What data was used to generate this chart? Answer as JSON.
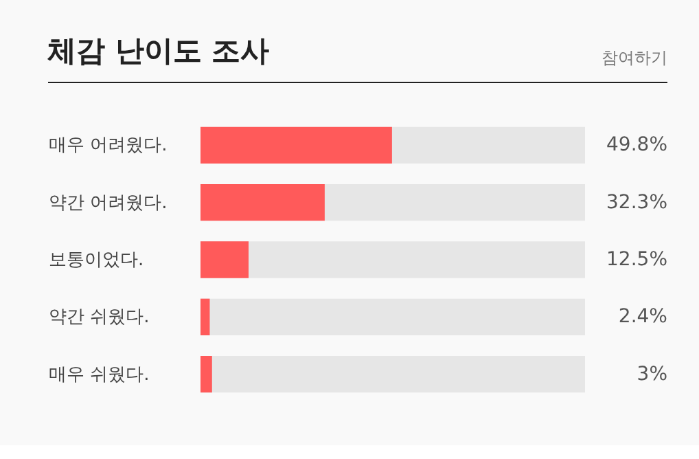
{
  "chart_data": {
    "type": "bar",
    "orientation": "horizontal",
    "title": "체감 난이도 조사",
    "annotations": [
      "참여하기"
    ],
    "categories": [
      "매우 어려웠다.",
      "약간 어려웠다.",
      "보통이었다.",
      "약간 쉬웠다.",
      "매우 쉬웠다."
    ],
    "values": [
      49.8,
      32.3,
      12.5,
      2.4,
      3
    ],
    "value_labels": [
      "49.8%",
      "32.3%",
      "12.5%",
      "2.4%",
      "3%"
    ],
    "color": "#ff5a5a",
    "xlim": [
      0,
      100
    ],
    "bands": [
      {
        "axis": "x",
        "from": 0,
        "to": 100,
        "color": "#e6e6e6"
      }
    ],
    "tick_labels": "y",
    "grid": false
  }
}
